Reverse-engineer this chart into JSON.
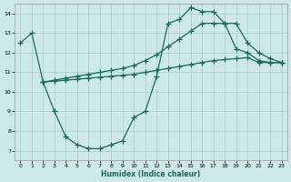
{
  "xlabel": "Humidex (Indice chaleur)",
  "bg_color": "#cce8e8",
  "grid_color": "#aacccc",
  "line_color": "#1a6b5a",
  "xlim": [
    -0.5,
    23.5
  ],
  "ylim": [
    6.5,
    14.5
  ],
  "xticks": [
    0,
    1,
    2,
    3,
    4,
    5,
    6,
    7,
    8,
    9,
    10,
    11,
    12,
    13,
    14,
    15,
    16,
    17,
    18,
    19,
    20,
    21,
    22,
    23
  ],
  "yticks": [
    7,
    8,
    9,
    10,
    11,
    12,
    13,
    14
  ],
  "line1_x": [
    0,
    1,
    2,
    3,
    4,
    5,
    6,
    7,
    8,
    9,
    10,
    11,
    12,
    13,
    14,
    15,
    16,
    17,
    18,
    19,
    20,
    21,
    22,
    23
  ],
  "line1_y": [
    12.5,
    13.0,
    10.5,
    9.0,
    7.7,
    7.3,
    7.1,
    7.1,
    7.3,
    7.5,
    8.7,
    9.0,
    10.8,
    13.5,
    13.7,
    14.3,
    14.1,
    14.1,
    13.5,
    12.2,
    12.0,
    11.6,
    11.5,
    11.5
  ],
  "line2_x": [
    2,
    3,
    4,
    5,
    6,
    7,
    8,
    9,
    10,
    11,
    12,
    13,
    14,
    15,
    16,
    17,
    18,
    19,
    20,
    21,
    22,
    23
  ],
  "line2_y": [
    10.5,
    10.55,
    10.6,
    10.65,
    10.7,
    10.75,
    10.8,
    10.85,
    10.9,
    11.0,
    11.1,
    11.2,
    11.3,
    11.4,
    11.5,
    11.6,
    11.65,
    11.7,
    11.75,
    11.5,
    11.5,
    11.5
  ],
  "line3_x": [
    2,
    3,
    4,
    5,
    6,
    7,
    8,
    9,
    10,
    11,
    12,
    13,
    14,
    15,
    16,
    17,
    18,
    19,
    20,
    21,
    22,
    23
  ],
  "line3_y": [
    10.5,
    10.6,
    10.7,
    10.8,
    10.9,
    11.0,
    11.1,
    11.2,
    11.35,
    11.6,
    11.9,
    12.3,
    12.7,
    13.1,
    13.5,
    13.5,
    13.5,
    13.5,
    12.5,
    12.0,
    11.7,
    11.5
  ]
}
